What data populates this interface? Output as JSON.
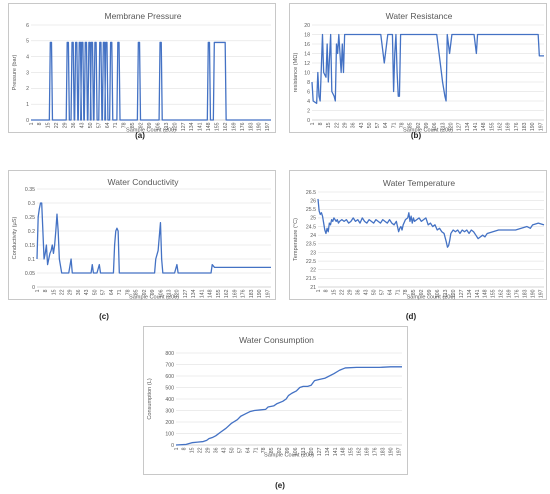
{
  "captions": [
    "(a)",
    "(b)",
    "(c)",
    "(d)",
    "(e)"
  ],
  "shared": {
    "x_ticks": [
      1,
      8,
      15,
      22,
      29,
      36,
      43,
      50,
      57,
      64,
      71,
      78,
      85,
      92,
      99,
      106,
      113,
      120,
      127,
      134,
      141,
      148,
      155,
      162,
      169,
      176,
      183,
      190,
      197
    ],
    "line_color": "#4472c4",
    "grid_color": "#d9d9d9"
  },
  "chart_data": [
    {
      "id": "a",
      "type": "line",
      "title": "Membrane Pressure",
      "xlabel": "Sample Count (200)",
      "ylabel": "Pressure (bar)",
      "xlim": [
        1,
        200
      ],
      "ylim": [
        0,
        6
      ],
      "y_ticks": [
        0,
        1,
        2,
        3,
        4,
        5,
        6
      ],
      "pulses": [
        [
          17,
          18
        ],
        [
          31,
          32
        ],
        [
          35,
          36
        ],
        [
          38,
          39
        ],
        [
          41,
          42
        ],
        [
          43,
          44
        ],
        [
          46,
          47
        ],
        [
          49,
          50
        ],
        [
          51,
          52
        ],
        [
          54,
          55
        ],
        [
          58,
          59
        ],
        [
          61,
          62
        ],
        [
          63,
          64
        ],
        [
          67,
          68
        ],
        [
          73,
          74
        ],
        [
          90,
          91
        ],
        [
          108,
          109
        ],
        [
          148,
          149
        ],
        [
          153,
          162
        ]
      ],
      "pulse_value": 4.9,
      "baseline": 0
    },
    {
      "id": "b",
      "type": "line",
      "title": "Water Resistance",
      "xlabel": "Sample Count (200)",
      "ylabel": "resistance (MΩ)",
      "xlim": [
        1,
        200
      ],
      "ylim": [
        0,
        20
      ],
      "y_ticks": [
        0,
        2,
        4,
        6,
        8,
        10,
        12,
        14,
        16,
        18,
        20
      ],
      "points": [
        [
          1,
          8
        ],
        [
          2,
          4
        ],
        [
          5,
          3.5
        ],
        [
          6,
          10
        ],
        [
          7,
          5
        ],
        [
          8,
          4
        ],
        [
          10,
          18
        ],
        [
          11,
          10
        ],
        [
          13,
          9
        ],
        [
          14,
          16
        ],
        [
          15,
          8
        ],
        [
          17,
          18
        ],
        [
          18,
          6
        ],
        [
          20,
          5
        ],
        [
          21,
          4
        ],
        [
          22,
          16
        ],
        [
          23,
          14
        ],
        [
          24,
          18
        ],
        [
          25,
          14
        ],
        [
          26,
          10
        ],
        [
          27,
          16
        ],
        [
          28,
          10
        ],
        [
          29,
          18
        ],
        [
          60,
          18
        ],
        [
          63,
          12
        ],
        [
          66,
          18
        ],
        [
          70,
          18
        ],
        [
          71,
          6
        ],
        [
          72,
          14
        ],
        [
          73,
          18
        ],
        [
          74,
          10
        ],
        [
          75,
          5
        ],
        [
          76,
          5
        ],
        [
          77,
          18
        ],
        [
          108,
          18
        ],
        [
          110,
          14
        ],
        [
          112,
          10
        ],
        [
          113,
          8
        ],
        [
          115,
          5
        ],
        [
          116,
          4
        ],
        [
          117,
          18
        ],
        [
          119,
          14
        ],
        [
          120,
          16
        ],
        [
          121,
          18
        ],
        [
          140,
          18
        ],
        [
          141,
          16
        ],
        [
          142,
          14
        ],
        [
          143,
          18
        ],
        [
          195,
          18
        ],
        [
          196,
          13.5
        ],
        [
          200,
          13.5
        ]
      ]
    },
    {
      "id": "c",
      "type": "line",
      "title": "Water Conductivity",
      "xlabel": "Sample Count (200)",
      "ylabel": "Conductivity (µS)",
      "xlim": [
        1,
        200
      ],
      "ylim": [
        0,
        0.35
      ],
      "y_ticks": [
        0,
        0.05,
        0.1,
        0.15,
        0.2,
        0.25,
        0.3,
        0.35
      ],
      "y_tick_labels": [
        "0",
        "0.05",
        "0.1",
        "0.15",
        "0.2",
        "0.25",
        "0.3",
        "0.35"
      ],
      "points": [
        [
          1,
          0.1
        ],
        [
          2,
          0.25
        ],
        [
          3,
          0.28
        ],
        [
          4,
          0.3
        ],
        [
          5,
          0.3
        ],
        [
          6,
          0.2
        ],
        [
          7,
          0.1
        ],
        [
          8,
          0.12
        ],
        [
          9,
          0.15
        ],
        [
          10,
          0.08
        ],
        [
          11,
          0.1
        ],
        [
          12,
          0.12
        ],
        [
          13,
          0.13
        ],
        [
          14,
          0.15
        ],
        [
          15,
          0.12
        ],
        [
          16,
          0.15
        ],
        [
          17,
          0.2
        ],
        [
          18,
          0.26
        ],
        [
          19,
          0.2
        ],
        [
          20,
          0.1
        ],
        [
          22,
          0.05
        ],
        [
          28,
          0.05
        ],
        [
          30,
          0.1
        ],
        [
          31,
          0.05
        ],
        [
          47,
          0.05
        ],
        [
          48,
          0.08
        ],
        [
          49,
          0.05
        ],
        [
          52,
          0.05
        ],
        [
          54,
          0.08
        ],
        [
          55,
          0.05
        ],
        [
          66,
          0.05
        ],
        [
          67,
          0.15
        ],
        [
          68,
          0.2
        ],
        [
          69,
          0.21
        ],
        [
          70,
          0.2
        ],
        [
          71,
          0.05
        ],
        [
          101,
          0.05
        ],
        [
          102,
          0.1
        ],
        [
          104,
          0.13
        ],
        [
          105,
          0.18
        ],
        [
          106,
          0.23
        ],
        [
          107,
          0.1
        ],
        [
          108,
          0.05
        ],
        [
          118,
          0.05
        ],
        [
          120,
          0.08
        ],
        [
          121,
          0.05
        ],
        [
          149,
          0.05
        ],
        [
          150,
          0.08
        ],
        [
          152,
          0.07
        ],
        [
          193,
          0.07
        ],
        [
          200,
          0.07
        ]
      ]
    },
    {
      "id": "d",
      "type": "line",
      "title": "Water Temperature",
      "xlabel": "Sample count (200)",
      "ylabel": "Temperature (°C)",
      "xlim": [
        1,
        200
      ],
      "ylim": [
        21,
        26.5
      ],
      "y_ticks": [
        21,
        21.5,
        22,
        22.5,
        23,
        23.5,
        24,
        24.5,
        25,
        25.5,
        26,
        26.5
      ],
      "points": [
        [
          1,
          26.1
        ],
        [
          2,
          25.4
        ],
        [
          3,
          25.2
        ],
        [
          4,
          25.3
        ],
        [
          5,
          25.1
        ],
        [
          6,
          24.7
        ],
        [
          7,
          24.3
        ],
        [
          8,
          24.1
        ],
        [
          9,
          24.4
        ],
        [
          10,
          24.2
        ],
        [
          11,
          24.7
        ],
        [
          12,
          24.6
        ],
        [
          13,
          24.9
        ],
        [
          14,
          24.8
        ],
        [
          15,
          25
        ],
        [
          16,
          24.9
        ],
        [
          17,
          24.8
        ],
        [
          18,
          24.9
        ],
        [
          19,
          24.7
        ],
        [
          20,
          24.8
        ],
        [
          22,
          24.9
        ],
        [
          24,
          24.8
        ],
        [
          26,
          24.9
        ],
        [
          28,
          24.7
        ],
        [
          30,
          24.8
        ],
        [
          32,
          25
        ],
        [
          34,
          24.8
        ],
        [
          36,
          24.9
        ],
        [
          38,
          24.7
        ],
        [
          40,
          25
        ],
        [
          42,
          24.8
        ],
        [
          44,
          24.7
        ],
        [
          46,
          24.9
        ],
        [
          48,
          24.8
        ],
        [
          50,
          24.7
        ],
        [
          52,
          24.9
        ],
        [
          54,
          24.8
        ],
        [
          56,
          24.7
        ],
        [
          58,
          24.9
        ],
        [
          60,
          24.8
        ],
        [
          62,
          24.7
        ],
        [
          64,
          24.9
        ],
        [
          66,
          24.7
        ],
        [
          68,
          24.6
        ],
        [
          70,
          24.8
        ],
        [
          72,
          24.2
        ],
        [
          73,
          24.4
        ],
        [
          74,
          24.5
        ],
        [
          75,
          24.3
        ],
        [
          76,
          24.6
        ],
        [
          78,
          24.9
        ],
        [
          80,
          25
        ],
        [
          81,
          25.3
        ],
        [
          82,
          24.8
        ],
        [
          83,
          25.1
        ],
        [
          84,
          24.7
        ],
        [
          85,
          25
        ],
        [
          86,
          24.8
        ],
        [
          88,
          24.9
        ],
        [
          90,
          25
        ],
        [
          92,
          24.8
        ],
        [
          94,
          24.9
        ],
        [
          96,
          25
        ],
        [
          98,
          24.6
        ],
        [
          100,
          24.7
        ],
        [
          102,
          24.5
        ],
        [
          104,
          24.6
        ],
        [
          106,
          24.3
        ],
        [
          108,
          24.4
        ],
        [
          110,
          24.2
        ],
        [
          112,
          24.1
        ],
        [
          114,
          23.6
        ],
        [
          115,
          23.3
        ],
        [
          116,
          23.4
        ],
        [
          117,
          23.7
        ],
        [
          118,
          24.1
        ],
        [
          120,
          24.3
        ],
        [
          122,
          24.2
        ],
        [
          124,
          24.3
        ],
        [
          126,
          24.1
        ],
        [
          128,
          24.3
        ],
        [
          130,
          24.2
        ],
        [
          132,
          24.3
        ],
        [
          134,
          24.1
        ],
        [
          136,
          24.3
        ],
        [
          138,
          24.2
        ],
        [
          140,
          24
        ],
        [
          142,
          23.8
        ],
        [
          144,
          23.9
        ],
        [
          146,
          24
        ],
        [
          148,
          23.9
        ],
        [
          150,
          24.1
        ],
        [
          155,
          24.2
        ],
        [
          160,
          24.3
        ],
        [
          165,
          24.3
        ],
        [
          170,
          24.3
        ],
        [
          175,
          24.3
        ],
        [
          180,
          24.4
        ],
        [
          185,
          24.5
        ],
        [
          188,
          24.4
        ],
        [
          190,
          24.6
        ],
        [
          195,
          24.7
        ],
        [
          200,
          24.6
        ]
      ]
    },
    {
      "id": "e",
      "type": "line",
      "title": "Water Consumption",
      "xlabel": "Sample Count (200)",
      "ylabel": "Consumption (L)",
      "xlim": [
        1,
        200
      ],
      "ylim": [
        0,
        800
      ],
      "y_ticks": [
        0,
        100,
        200,
        300,
        400,
        500,
        600,
        700,
        800
      ],
      "points": [
        [
          1,
          0
        ],
        [
          10,
          5
        ],
        [
          15,
          20
        ],
        [
          20,
          25
        ],
        [
          25,
          30
        ],
        [
          28,
          40
        ],
        [
          30,
          55
        ],
        [
          33,
          65
        ],
        [
          36,
          80
        ],
        [
          40,
          110
        ],
        [
          45,
          145
        ],
        [
          50,
          190
        ],
        [
          55,
          220
        ],
        [
          58,
          250
        ],
        [
          62,
          270
        ],
        [
          66,
          290
        ],
        [
          70,
          300
        ],
        [
          75,
          305
        ],
        [
          80,
          310
        ],
        [
          82,
          330
        ],
        [
          87,
          340
        ],
        [
          90,
          360
        ],
        [
          95,
          380
        ],
        [
          98,
          400
        ],
        [
          100,
          430
        ],
        [
          103,
          450
        ],
        [
          107,
          470
        ],
        [
          110,
          500
        ],
        [
          113,
          510
        ],
        [
          117,
          510
        ],
        [
          120,
          520
        ],
        [
          123,
          560
        ],
        [
          127,
          570
        ],
        [
          132,
          580
        ],
        [
          136,
          600
        ],
        [
          140,
          620
        ],
        [
          145,
          650
        ],
        [
          150,
          670
        ],
        [
          160,
          675
        ],
        [
          170,
          675
        ],
        [
          180,
          675
        ],
        [
          190,
          680
        ],
        [
          200,
          680
        ]
      ]
    }
  ]
}
